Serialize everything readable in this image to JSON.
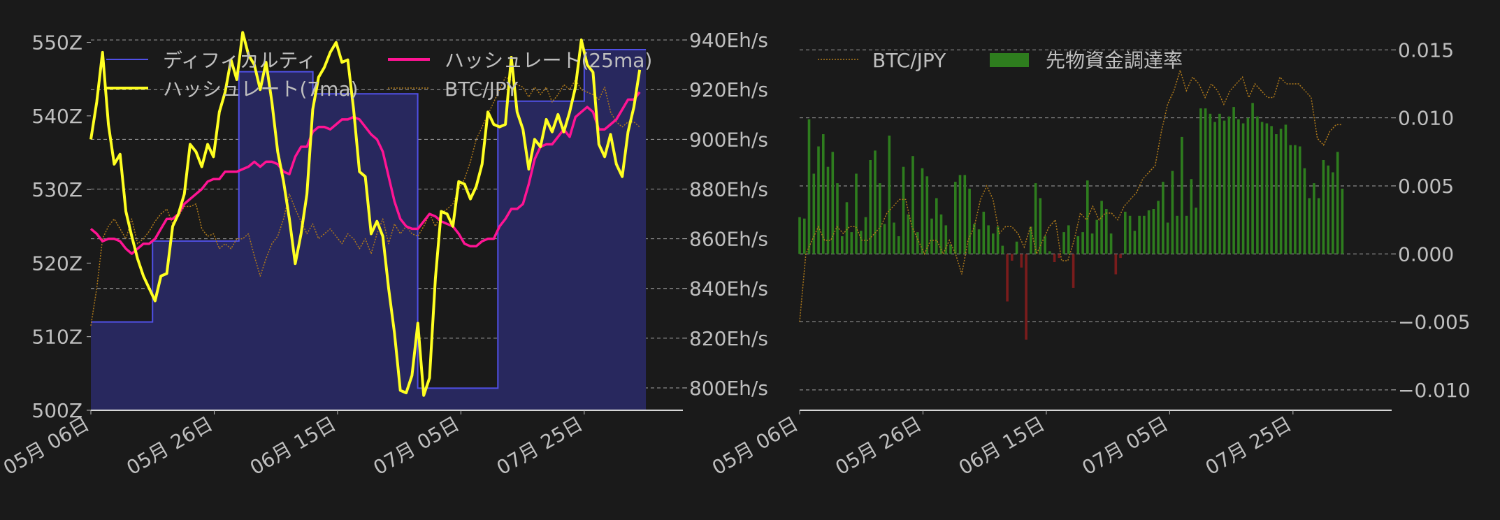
{
  "colors": {
    "background": "#1a1a1a",
    "text": "#bfbfbf",
    "grid": "#cfcfcf",
    "difficulty_line": "#5050e6",
    "difficulty_fill": "#28285e",
    "hashrate_7ma": "#ffff22",
    "hashrate_25ma": "#ff1493",
    "btc_jpy": "#b07a1a",
    "funding_pos": "#2e7d1e",
    "funding_neg": "#7a1c1c"
  },
  "chart_data": [
    {
      "type": "line",
      "x_tick_labels": [
        "05月 06日",
        "05月 26日",
        "06月 15日",
        "07月 05日",
        "07月 25日"
      ],
      "x_tick_days": [
        0,
        20,
        40,
        60,
        80
      ],
      "x_range": [
        0,
        96
      ],
      "left_axis": {
        "ticks": [
          500,
          510,
          520,
          530,
          540,
          550
        ],
        "labels": [
          "500Z",
          "510Z",
          "520Z",
          "530Z",
          "540Z",
          "550Z"
        ],
        "ylim": [
          500,
          551
        ]
      },
      "right_axis": {
        "ticks": [
          800,
          820,
          840,
          860,
          880,
          900,
          920,
          940
        ],
        "labels": [
          "800Eh/s",
          "820Eh/s",
          "840Eh/s",
          "860Eh/s",
          "880Eh/s",
          "900Eh/s",
          "920Eh/s",
          "940Eh/s"
        ],
        "ylim": [
          791,
          942
        ]
      },
      "legend": [
        "ディフィカルティ",
        "ハッシュレート(7ma)",
        "ハッシュレート(25ma)",
        "BTC/JPY"
      ],
      "legend_position": "top",
      "difficulty_steps": [
        {
          "from": 0,
          "to": 10,
          "value": 512
        },
        {
          "from": 10,
          "to": 24,
          "value": 523
        },
        {
          "from": 24,
          "to": 36,
          "value": 546
        },
        {
          "from": 36,
          "to": 53,
          "value": 543
        },
        {
          "from": 53,
          "to": 66,
          "value": 503
        },
        {
          "from": 66,
          "to": 80,
          "value": 542
        },
        {
          "from": 80,
          "to": 90,
          "value": 549
        }
      ],
      "series": [
        {
          "name": "ハッシュレート(7ma)",
          "values": [
            900,
            915,
            935,
            906,
            890,
            894,
            871,
            861,
            852,
            845,
            840,
            835,
            845,
            846,
            865,
            870,
            878,
            898,
            895,
            889,
            898,
            893,
            911,
            919,
            932,
            924,
            943,
            934,
            930,
            920,
            931,
            915,
            895,
            883,
            868,
            850,
            862,
            878,
            912,
            925,
            929,
            935,
            939,
            931,
            932,
            912,
            887,
            885,
            862,
            867,
            861,
            840,
            822,
            799,
            798,
            805,
            826,
            797,
            804,
            844,
            871,
            870,
            865,
            883,
            882,
            876,
            881,
            890,
            911,
            906,
            905,
            906,
            933,
            911,
            904,
            888,
            900,
            897,
            908,
            903,
            910,
            903,
            911,
            921,
            940,
            930,
            927,
            898,
            893,
            902,
            890,
            885,
            903,
            913,
            928
          ]
        },
        {
          "name": "ハッシュレート(25ma)",
          "values": [
            864,
            862,
            859,
            860,
            860,
            859,
            856,
            854,
            856,
            858,
            858,
            860,
            864,
            868,
            868,
            870,
            874,
            876,
            878,
            880,
            883,
            884,
            884,
            887,
            887,
            887,
            888,
            889,
            891,
            889,
            891,
            891,
            890,
            887,
            886,
            893,
            897,
            897,
            903,
            905,
            905,
            904,
            906,
            908,
            908,
            909,
            908,
            905,
            902,
            900,
            895,
            885,
            875,
            868,
            865,
            864,
            864,
            867,
            870,
            869,
            867,
            866,
            865,
            862,
            858,
            857,
            857,
            859,
            860,
            860,
            865,
            868,
            872,
            872,
            874,
            882,
            892,
            897,
            898,
            898,
            901,
            904,
            901,
            909,
            911,
            913,
            911,
            904,
            904,
            906,
            908,
            912,
            916,
            916,
            919
          ]
        },
        {
          "name": "BTC/JPY",
          "values": [
            825,
            840,
            860,
            865,
            868,
            864,
            860,
            868,
            858,
            860,
            863,
            867,
            870,
            872,
            866,
            869,
            873,
            873,
            874,
            864,
            861,
            862,
            856,
            858,
            856,
            860,
            860,
            862,
            853,
            845,
            852,
            858,
            861,
            868,
            878,
            872,
            867,
            862,
            866,
            860,
            862,
            864,
            861,
            858,
            862,
            860,
            856,
            860,
            854,
            862,
            868,
            858,
            866,
            862,
            865,
            862,
            861,
            865,
            870,
            865,
            870,
            872,
            874,
            880,
            884,
            891,
            900,
            905,
            910,
            915,
            920,
            925,
            924,
            922,
            921,
            917,
            921,
            918,
            921,
            915,
            918,
            922,
            920,
            924,
            920,
            919,
            918,
            916,
            921,
            911,
            907,
            905,
            907,
            907,
            905
          ]
        }
      ]
    },
    {
      "type": "bar",
      "x_tick_labels": [
        "05月 06日",
        "05月 26日",
        "06月 15日",
        "07月 05日",
        "07月 25日"
      ],
      "x_tick_days": [
        0,
        20,
        40,
        60,
        80
      ],
      "x_range": [
        0,
        96
      ],
      "right_axis": {
        "ticks": [
          -0.01,
          -0.005,
          0,
          0.005,
          0.01,
          0.015
        ],
        "labels": [
          "−0.010",
          "−0.005",
          "0.000",
          "0.005",
          "0.010",
          "0.015"
        ],
        "ylim": [
          -0.0115,
          0.0161
        ]
      },
      "legend": [
        "BTC/JPY",
        "先物資金調達率"
      ],
      "legend_position": "top",
      "series": [
        {
          "name": "先物資金調達率",
          "values": [
            0.0027,
            0.0026,
            0.0099,
            0.0059,
            0.0079,
            0.0088,
            0.0064,
            0.0075,
            0.0052,
            0.0013,
            0.0038,
            0.0016,
            0.0059,
            0.0017,
            0.0027,
            0.0069,
            0.0076,
            0.0052,
            0.0022,
            0.0087,
            0.0023,
            0.0013,
            0.0064,
            0.0029,
            0.0072,
            0.0016,
            0.0063,
            0.0057,
            0.0026,
            0.0041,
            0.0029,
            0.0021,
            0.0007,
            0.0053,
            0.0058,
            0.0058,
            0.0048,
            0.0022,
            0.0018,
            0.0031,
            0.0021,
            0.0015,
            0.002,
            0.0006,
            -0.0035,
            -0.0005,
            0.0009,
            -0.001,
            -0.0063,
            0.002,
            0.0052,
            0.0041,
            0.0013,
            0.0002,
            -0.0006,
            -0.0003,
            0.0016,
            0.0021,
            -0.0025,
            0.0013,
            0.0016,
            0.0054,
            0.0015,
            0.0025,
            0.0039,
            0.0033,
            0.0015,
            -0.0015,
            -0.0003,
            0.0031,
            0.0028,
            0.0017,
            0.0028,
            0.0028,
            0.0032,
            0.0033,
            0.0039,
            0.0053,
            0.0023,
            0.0061,
            0.0028,
            0.0086,
            0.0028,
            0.0055,
            0.0034,
            0.0107,
            0.0107,
            0.0103,
            0.0097,
            0.0103,
            0.0098,
            0.0101,
            0.0108,
            0.0099,
            0.0096,
            0.01,
            0.0111,
            0.0101,
            0.0097,
            0.0096,
            0.0094,
            0.0088,
            0.0092,
            0.0095,
            0.008,
            0.008,
            0.0079,
            0.0063,
            0.0041,
            0.0052,
            0.0041,
            0.0069,
            0.0065,
            0.006,
            0.0075,
            0.0048
          ]
        },
        {
          "name": "BTC/JPY",
          "x_range": [
            0,
            88
          ],
          "values": [
            -0.005,
            0.0,
            0.001,
            0.002,
            0.001,
            0.001,
            0.002,
            0.0015,
            0.002,
            0.002,
            0.001,
            0.001,
            0.0015,
            0.002,
            0.003,
            0.0035,
            0.004,
            0.004,
            0.002,
            0.001,
            0.0,
            0.001,
            0.001,
            0.0,
            0.001,
            0.0,
            -0.0015,
            0.001,
            0.002,
            0.004,
            0.005,
            0.004,
            0.0015,
            0.002,
            0.002,
            0.0015,
            0.0005,
            0.002,
            0.0,
            0.001,
            0.002,
            0.0025,
            -0.0005,
            -0.0005,
            0.001,
            0.003,
            0.0025,
            0.0035,
            0.0025,
            0.003,
            0.003,
            0.0025,
            0.0035,
            0.004,
            0.0045,
            0.0055,
            0.006,
            0.0065,
            0.009,
            0.011,
            0.012,
            0.0135,
            0.012,
            0.013,
            0.0125,
            0.0115,
            0.0125,
            0.012,
            0.011,
            0.012,
            0.0125,
            0.013,
            0.0115,
            0.0125,
            0.012,
            0.0115,
            0.0115,
            0.013,
            0.0125,
            0.0125,
            0.0125,
            0.012,
            0.0115,
            0.0085,
            0.008,
            0.009,
            0.0095,
            0.0095
          ]
        }
      ]
    }
  ]
}
